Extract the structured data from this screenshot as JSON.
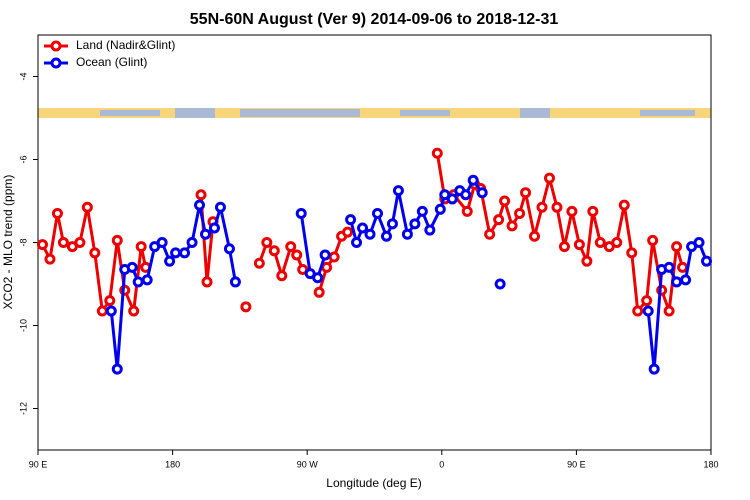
{
  "chart_data": {
    "type": "line",
    "title": "55N-60N August (Ver 9)   2014-09-06 to 2018-12-31",
    "xlabel": "Longitude (deg E)",
    "ylabel": "XCO2 - MLO trend (ppm)",
    "xlim": [
      90,
      540
    ],
    "ylim": [
      -13,
      -3
    ],
    "xticks": [
      {
        "value": 90,
        "label": "90 E"
      },
      180,
      {
        "value": 270,
        "label": "90 W"
      },
      {
        "value": 360,
        "label": "0"
      },
      {
        "value": 450,
        "label": "90 E"
      },
      {
        "value": 540,
        "label": "180"
      }
    ],
    "yticks": [
      -12,
      -10,
      -8,
      -6,
      -4
    ],
    "legend": "upper left",
    "series": [
      {
        "name": "Land (Nadir&Glint)",
        "color": "#ee0000",
        "x": [
          93,
          98,
          103,
          107,
          113,
          118,
          123,
          128,
          133,
          138,
          143,
          148,
          154,
          159,
          162,
          null,
          199,
          203,
          207,
          null,
          229,
          null,
          238,
          243,
          248,
          253,
          259,
          263,
          267,
          null,
          278,
          283,
          288,
          293,
          297,
          null,
          357,
          362,
          368,
          377,
          382,
          386,
          392,
          398,
          402,
          407,
          412,
          416,
          422,
          427,
          432,
          437,
          442,
          447,
          452,
          457,
          461,
          466,
          472,
          477,
          482,
          487,
          491,
          497,
          501,
          507,
          512,
          517,
          521
        ],
        "values": [
          -8.05,
          -8.4,
          -7.3,
          -8.0,
          -8.1,
          -8.0,
          -7.15,
          -8.25,
          -9.65,
          -9.4,
          -7.95,
          -9.15,
          -9.65,
          -8.1,
          -8.6,
          null,
          -6.85,
          -8.95,
          -7.5,
          null,
          -9.55,
          null,
          -8.5,
          -8.0,
          -8.2,
          -8.8,
          -8.1,
          -8.3,
          -8.65,
          null,
          -9.2,
          -8.6,
          -8.35,
          -7.85,
          -7.75,
          null,
          -5.85,
          -6.95,
          -6.85,
          -7.25,
          -6.6,
          -6.7,
          -7.8,
          -7.45,
          -7.0,
          -7.6,
          -7.3,
          -6.8,
          -7.85,
          -7.15,
          -6.45,
          -7.15,
          -8.1,
          -7.25,
          -8.05,
          -8.45,
          -7.25,
          -8.0,
          -8.1,
          -8.0,
          -7.1,
          -8.25,
          -9.65,
          -9.4,
          -7.95,
          -9.15,
          -9.65,
          -8.1,
          -8.6
        ]
      },
      {
        "name": "Ocean (Glint)",
        "color": "#0000ee",
        "x": [
          139,
          143,
          148,
          153,
          157,
          163,
          168,
          173,
          178,
          182,
          188,
          193,
          198,
          202,
          208,
          212,
          218,
          222,
          null,
          266,
          272,
          277,
          282,
          null,
          299,
          303,
          307,
          312,
          317,
          323,
          327,
          331,
          337,
          342,
          347,
          352,
          359,
          362,
          367,
          372,
          376,
          381,
          387,
          null,
          399,
          null,
          498,
          502,
          507,
          512,
          517,
          523,
          527,
          532,
          537
        ],
        "values": [
          -9.65,
          -11.05,
          -8.65,
          -8.6,
          -8.95,
          -8.9,
          -8.1,
          -8.0,
          -8.45,
          -8.25,
          -8.25,
          -8.0,
          -7.1,
          -7.8,
          -7.65,
          -7.15,
          -8.15,
          -8.95,
          null,
          -7.3,
          -8.75,
          -8.85,
          -8.3,
          null,
          -7.45,
          -8.0,
          -7.65,
          -7.8,
          -7.3,
          -7.85,
          -7.55,
          -6.75,
          -7.8,
          -7.55,
          -7.25,
          -7.7,
          -7.2,
          -6.85,
          -6.95,
          -6.75,
          -6.85,
          -6.5,
          -6.8,
          null,
          -9.0,
          null,
          -9.65,
          -11.05,
          -8.65,
          -8.6,
          -8.95,
          -8.9,
          -8.1,
          -8.0,
          -8.45
        ]
      }
    ]
  }
}
